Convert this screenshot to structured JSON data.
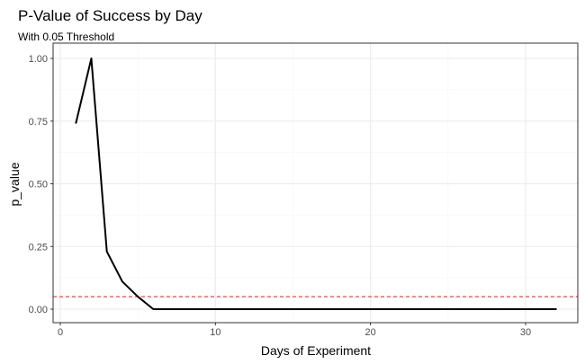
{
  "chart_data": {
    "type": "line",
    "title": "P-Value of Success by Day",
    "subtitle": "With 0.05 Threshold",
    "xlabel": "Days of Experiment",
    "ylabel": "p_value",
    "xlim": [
      0,
      33
    ],
    "ylim": [
      0,
      1
    ],
    "x_ticks": [
      0,
      10,
      20,
      30
    ],
    "x_tick_labels": [
      "0",
      "10",
      "20",
      "30"
    ],
    "y_ticks": [
      0,
      0.25,
      0.5,
      0.75,
      1
    ],
    "y_tick_labels": [
      "0.00",
      "0.25",
      "0.50",
      "0.75",
      "1.00"
    ],
    "grid": true,
    "series": [
      {
        "x": [
          1,
          2,
          3,
          4,
          5,
          6,
          7,
          8,
          9,
          10,
          11,
          12,
          13,
          14,
          15,
          16,
          17,
          18,
          19,
          20,
          21,
          22,
          23,
          24,
          25,
          26,
          27,
          28,
          29,
          30,
          31,
          32
        ],
        "values": [
          0.74,
          1.0,
          0.23,
          0.11,
          0.05,
          0.0,
          0.0,
          0.0,
          0.0,
          0.0,
          0.0,
          0.0,
          0.0,
          0.0,
          0.0,
          0.0,
          0.0,
          0.0,
          0.0,
          0.0,
          0.0,
          0.0,
          0.0,
          0.0,
          0.0,
          0.0,
          0.0,
          0.0,
          0.0,
          0.0,
          0.0,
          0.0
        ],
        "color": "#000000"
      }
    ],
    "threshold": {
      "value": 0.05,
      "color": "#e8302b",
      "style": "dashed"
    },
    "colors": {
      "panel_border": "#333333",
      "grid_major": "#ebebeb",
      "grid_minor": "#f5f5f5",
      "tick_text": "#4d4d4d"
    }
  }
}
